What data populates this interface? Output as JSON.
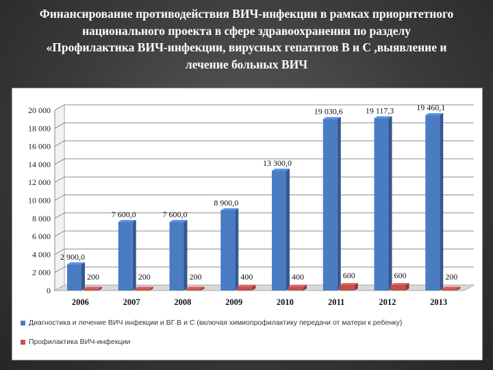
{
  "slide": {
    "title_lines": [
      "Финансирование противодействия ВИЧ-инфекции в рамках приоритетного",
      "национального проекта в сфере здравоохранения по разделу",
      "«Профилактика ВИЧ-инфекции, вирусных гепатитов В и С ,выявление и",
      "лечение больных ВИЧ"
    ]
  },
  "chart_data": {
    "type": "bar",
    "categories": [
      "2006",
      "2007",
      "2008",
      "2009",
      "2010",
      "2011",
      "2012",
      "2013"
    ],
    "series": [
      {
        "name": "Диагностика и лечение ВИЧ инфекции и ВГ В и С (включая химиопрофилактику передачи от матери к ребенку)",
        "color": "#4a7cc4",
        "values": [
          2900.0,
          7600.0,
          7600.0,
          8900.0,
          13300.0,
          19030.6,
          19117.3,
          19460.1
        ],
        "labels": [
          "2 900,0",
          "7 600,0",
          "7 600,0",
          "8 900,0",
          "13 300,0",
          "19 030,6",
          "19 117,3",
          "19 460,1"
        ]
      },
      {
        "name": "Профилактика ВИЧ-инфекции",
        "color": "#c0504d",
        "values": [
          200,
          200,
          200,
          400,
          400,
          600,
          600,
          200
        ],
        "labels": [
          "200",
          "200",
          "200",
          "400",
          "400",
          "600",
          "600",
          "200"
        ]
      }
    ],
    "y_ticks": [
      "0",
      "2 000",
      "4 000",
      "6 000",
      "8 000",
      "10 000",
      "12 000",
      "14 000",
      "16 000",
      "18 000",
      "20 000"
    ],
    "ylim": [
      0,
      20000
    ],
    "grid": true,
    "legend_position": "bottom"
  }
}
